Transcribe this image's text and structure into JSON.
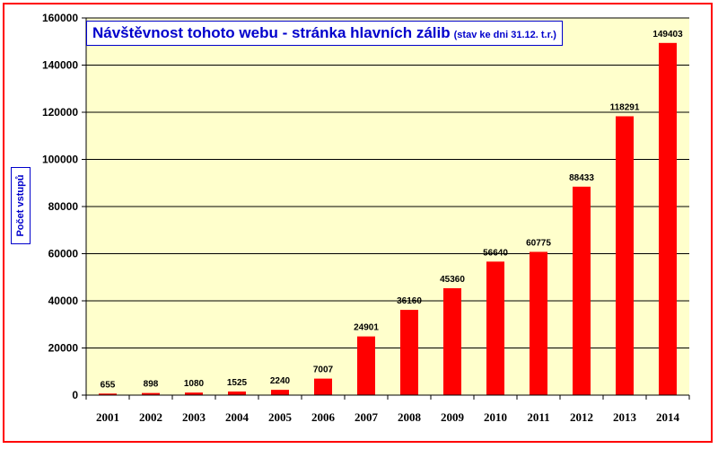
{
  "chart_data": {
    "type": "bar",
    "title": "Návštěvnost tohoto webu - stránka hlavních zálib",
    "subtitle": "(stav ke dni 31.12. t.r.)",
    "xlabel": "",
    "ylabel": "Počet vstupů",
    "categories": [
      "2001",
      "2002",
      "2003",
      "2004",
      "2005",
      "2006",
      "2007",
      "2008",
      "2009",
      "2010",
      "2011",
      "2012",
      "2013",
      "2014"
    ],
    "values": [
      655,
      898,
      1080,
      1525,
      2240,
      7007,
      24901,
      36160,
      45360,
      56640,
      60775,
      88433,
      118291,
      149403
    ],
    "data_labels": [
      "655",
      "898",
      "1080",
      "1525",
      "2240",
      "7007",
      "24901",
      "36160",
      "45360",
      "56640",
      "60775",
      "88433",
      "118291",
      "149403"
    ],
    "yticks": [
      0,
      20000,
      40000,
      60000,
      80000,
      100000,
      120000,
      140000,
      160000
    ],
    "ytick_labels": [
      "0",
      "20000",
      "40000",
      "60000",
      "80000",
      "100000",
      "120000",
      "140000",
      "160000"
    ],
    "ylim": [
      0,
      160000
    ],
    "grid": true,
    "legend": "none",
    "colors": {
      "bar": "#ff0000",
      "plot_background": "#ffffcc",
      "gridline": "#000000",
      "title_text": "#0000cc",
      "frame": "#ff0000"
    }
  }
}
